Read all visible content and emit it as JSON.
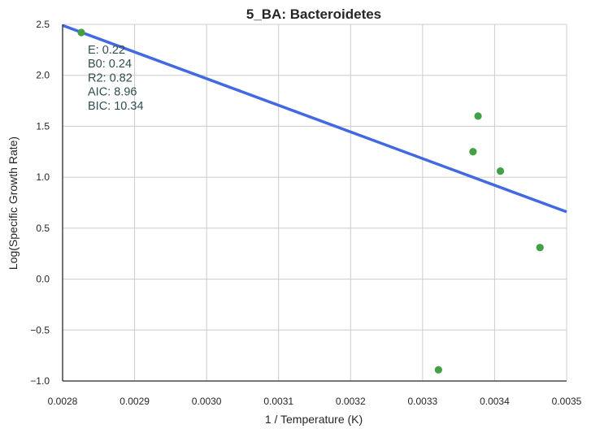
{
  "chart_data": {
    "type": "scatter",
    "title": "5_BA: Bacteroidetes",
    "xlabel": "1 / Temperature (K)",
    "ylabel": "Log(Specific Growth Rate)",
    "xlim": [
      0.0028,
      0.0035
    ],
    "ylim": [
      -1.0,
      2.5
    ],
    "grid": true,
    "xticks": [
      0.0028,
      0.0029,
      0.003,
      0.0031,
      0.0032,
      0.0033,
      0.0034,
      0.0035
    ],
    "xtick_labels": [
      "0.0028",
      "0.0029",
      "0.0030",
      "0.0031",
      "0.0032",
      "0.0033",
      "0.0034",
      "0.0035"
    ],
    "yticks": [
      -1.0,
      -0.5,
      0.0,
      0.5,
      1.0,
      1.5,
      2.0,
      2.5
    ],
    "ytick_labels": [
      "−1.0",
      "−0.5",
      "0.0",
      "0.5",
      "1.0",
      "1.5",
      "2.0",
      "2.5"
    ],
    "points": {
      "color": "#43a047",
      "x": [
        0.002826,
        0.003322,
        0.00337,
        0.003377,
        0.003408,
        0.003463
      ],
      "y": [
        2.42,
        -0.89,
        1.25,
        1.6,
        1.06,
        0.31
      ]
    },
    "fit_line": {
      "color": "#4169e1",
      "x": [
        0.0028,
        0.0035
      ],
      "y": [
        2.49,
        0.66
      ]
    },
    "annotations": [
      "E:  0.22",
      "B0:  0.24",
      "R2:  0.82",
      "AIC: 8.96",
      "BIC: 10.34"
    ]
  }
}
